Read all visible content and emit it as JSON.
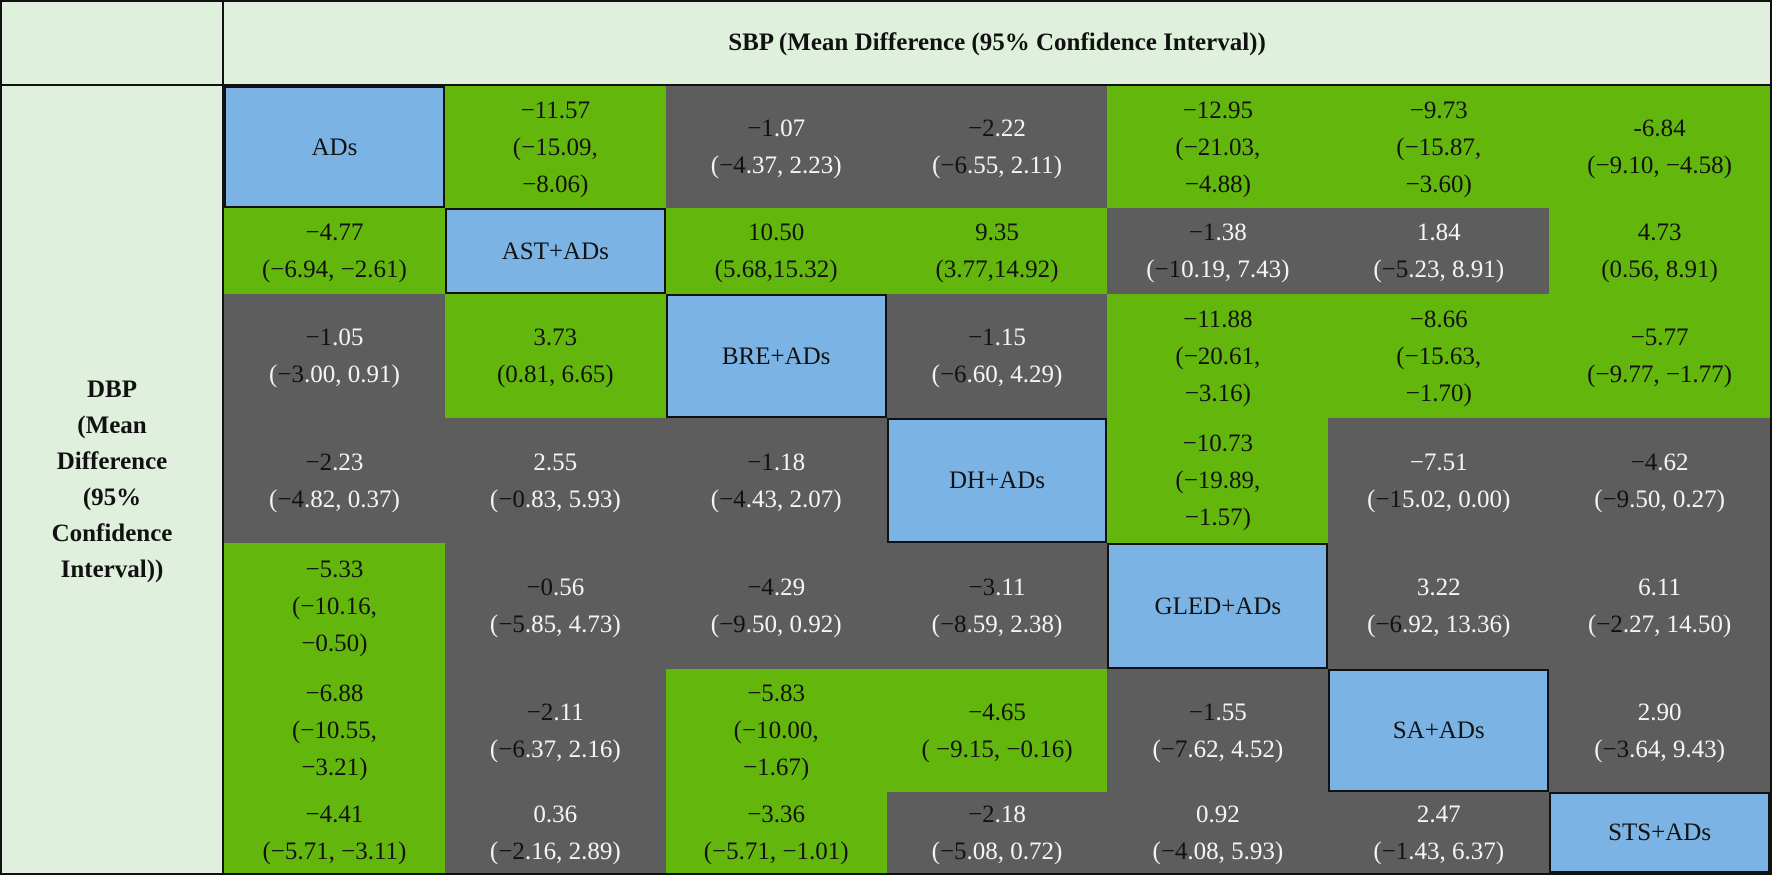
{
  "header": {
    "column_title": "SBP (Mean Difference (95% Confidence Interval))",
    "row_title": "DBP\n(Mean\nDifference\n(95%\nConfidence\nInterval))"
  },
  "colors": {
    "significant": "#63b60c",
    "not_significant": "#5d5d5d",
    "treatment": "#7ab3e4",
    "header": "#dff0dc"
  },
  "treatments": [
    "ADs",
    "AST+ADs",
    "BRE+ADs",
    "DH+ADs",
    "GLED+ADs",
    "SA+ADs",
    "STS+ADs"
  ],
  "rows": [
    [
      {
        "type": "blue",
        "lines": [
          [
            "",
            "ADs"
          ]
        ]
      },
      {
        "type": "green",
        "lines": [
          [
            "",
            "−11.57"
          ],
          [
            "",
            "(−15.09,"
          ],
          [
            "",
            "−8.06)"
          ]
        ]
      },
      {
        "type": "gray",
        "lines": [
          [
            "−1",
            ".07"
          ],
          [
            "(",
            "−4",
            ".37, 2.23)"
          ]
        ]
      },
      {
        "type": "gray",
        "lines": [
          [
            "−2",
            ".22"
          ],
          [
            "(",
            "−6",
            ".55, 2.11)"
          ]
        ]
      },
      {
        "type": "green",
        "lines": [
          [
            "",
            "−12.95"
          ],
          [
            "",
            "(−21.03,"
          ],
          [
            "",
            "−4.88)"
          ]
        ]
      },
      {
        "type": "green",
        "lines": [
          [
            "",
            "−9.73"
          ],
          [
            "",
            "(−15.87,"
          ],
          [
            "",
            "−3.60)"
          ]
        ]
      },
      {
        "type": "green",
        "lines": [
          [
            "",
            "-6.84"
          ],
          [
            "",
            "(−9.10, −4.58)"
          ]
        ]
      }
    ],
    [
      {
        "type": "green",
        "lines": [
          [
            "",
            "−4.77"
          ],
          [
            "",
            "(−6.94, −2.61)"
          ]
        ]
      },
      {
        "type": "blue",
        "lines": [
          [
            "",
            "AST+ADs"
          ]
        ]
      },
      {
        "type": "green",
        "lines": [
          [
            "",
            "10.50"
          ],
          [
            "",
            "(5.68,15.32)"
          ]
        ]
      },
      {
        "type": "green",
        "lines": [
          [
            "",
            "9.35"
          ],
          [
            "",
            "(3.77,14.92)"
          ]
        ]
      },
      {
        "type": "gray",
        "lines": [
          [
            "−1",
            ".38"
          ],
          [
            "(",
            "−1",
            "0.19, 7.43)"
          ]
        ]
      },
      {
        "type": "gray",
        "lines": [
          [
            "",
            "1.84"
          ],
          [
            "(",
            "−5",
            ".23, 8.91)"
          ]
        ]
      },
      {
        "type": "green",
        "lines": [
          [
            "",
            "4.73"
          ],
          [
            "",
            "(0.56, 8.91)"
          ]
        ]
      }
    ],
    [
      {
        "type": "gray",
        "lines": [
          [
            "−1",
            ".05"
          ],
          [
            "(",
            "−3",
            ".00, 0.91)"
          ]
        ]
      },
      {
        "type": "green",
        "lines": [
          [
            "",
            "3.73"
          ],
          [
            "",
            "(0.81, 6.65)"
          ]
        ]
      },
      {
        "type": "blue",
        "lines": [
          [
            "",
            "BRE+ADs"
          ]
        ]
      },
      {
        "type": "gray",
        "lines": [
          [
            "−1",
            ".15"
          ],
          [
            "(",
            "−6",
            ".60, 4.29)"
          ]
        ]
      },
      {
        "type": "green",
        "lines": [
          [
            "",
            "−11.88"
          ],
          [
            "",
            "(−20.61,"
          ],
          [
            "",
            "−3.16)"
          ]
        ]
      },
      {
        "type": "green",
        "lines": [
          [
            "",
            "−8.66"
          ],
          [
            "",
            "(−15.63,"
          ],
          [
            "",
            "−1.70)"
          ]
        ]
      },
      {
        "type": "green",
        "lines": [
          [
            "",
            "−5.77"
          ],
          [
            "",
            "(−9.77, −1.77)"
          ]
        ]
      }
    ],
    [
      {
        "type": "gray",
        "lines": [
          [
            "−2",
            ".23"
          ],
          [
            "(",
            "−4",
            ".82, 0.37)"
          ]
        ]
      },
      {
        "type": "gray",
        "lines": [
          [
            "",
            "2.55"
          ],
          [
            "(",
            "−0",
            ".83, 5.93)"
          ]
        ]
      },
      {
        "type": "gray",
        "lines": [
          [
            "−1",
            ".18"
          ],
          [
            "(",
            "−4",
            ".43, 2.07)"
          ]
        ]
      },
      {
        "type": "blue",
        "lines": [
          [
            "",
            "DH+ADs"
          ]
        ]
      },
      {
        "type": "green",
        "lines": [
          [
            "",
            "−10.73"
          ],
          [
            "",
            "(−19.89,"
          ],
          [
            "",
            "−1.57)"
          ]
        ]
      },
      {
        "type": "gray",
        "lines": [
          [
            "",
            "−7.51"
          ],
          [
            "(",
            "−1",
            "5.02, 0.00)"
          ]
        ]
      },
      {
        "type": "gray",
        "lines": [
          [
            "−4",
            ".62"
          ],
          [
            "(",
            "−9",
            ".50, 0.27)"
          ]
        ]
      }
    ],
    [
      {
        "type": "green",
        "lines": [
          [
            "",
            "−5.33"
          ],
          [
            "",
            "(−10.16,"
          ],
          [
            "",
            "−0.50)"
          ]
        ]
      },
      {
        "type": "gray",
        "lines": [
          [
            "−0",
            ".56"
          ],
          [
            "(",
            "−5",
            ".85, 4.73)"
          ]
        ]
      },
      {
        "type": "gray",
        "lines": [
          [
            "−4",
            ".29"
          ],
          [
            "(",
            "−9",
            ".50, 0.92)"
          ]
        ]
      },
      {
        "type": "gray",
        "lines": [
          [
            "−3",
            ".11"
          ],
          [
            "(",
            "−8",
            ".59, 2.38)"
          ]
        ]
      },
      {
        "type": "blue",
        "lines": [
          [
            "",
            "GLED+ADs"
          ]
        ]
      },
      {
        "type": "gray",
        "lines": [
          [
            "",
            "3.22"
          ],
          [
            "(",
            "−6",
            ".92, 13.36)"
          ]
        ]
      },
      {
        "type": "gray",
        "lines": [
          [
            "",
            "6.11"
          ],
          [
            "(",
            "−2",
            ".27, 14.50)"
          ]
        ]
      }
    ],
    [
      {
        "type": "green",
        "lines": [
          [
            "",
            "−6.88"
          ],
          [
            "",
            "(−10.55,"
          ],
          [
            "",
            "−3.21)"
          ]
        ]
      },
      {
        "type": "gray",
        "lines": [
          [
            "−2",
            ".11"
          ],
          [
            "(",
            "−6",
            ".37, 2.16)"
          ]
        ]
      },
      {
        "type": "green",
        "lines": [
          [
            "",
            "−5.83"
          ],
          [
            "",
            "(−10.00,"
          ],
          [
            "",
            "−1.67)"
          ]
        ]
      },
      {
        "type": "green",
        "lines": [
          [
            "",
            "−4.65"
          ],
          [
            "",
            "( −9.15, −0.16)"
          ]
        ]
      },
      {
        "type": "gray",
        "lines": [
          [
            "−1",
            ".55"
          ],
          [
            "(",
            "−7",
            ".62, 4.52)"
          ]
        ]
      },
      {
        "type": "blue",
        "lines": [
          [
            "",
            "SA+ADs"
          ]
        ]
      },
      {
        "type": "gray",
        "lines": [
          [
            "",
            "2.90"
          ],
          [
            "(",
            "−3",
            ".64, 9.43)"
          ]
        ]
      }
    ],
    [
      {
        "type": "green",
        "lines": [
          [
            "",
            "−4.41"
          ],
          [
            "",
            "(−5.71, −3.11)"
          ]
        ]
      },
      {
        "type": "gray",
        "lines": [
          [
            "",
            "0.36"
          ],
          [
            "(",
            "−2",
            ".16, 2.89)"
          ]
        ]
      },
      {
        "type": "green",
        "lines": [
          [
            "",
            "−3.36"
          ],
          [
            "",
            "(−5.71, −1.01)"
          ]
        ]
      },
      {
        "type": "gray",
        "lines": [
          [
            "−2",
            ".18"
          ],
          [
            "(",
            "−5",
            ".08, 0.72)"
          ]
        ]
      },
      {
        "type": "gray",
        "lines": [
          [
            "",
            "0.92"
          ],
          [
            "(",
            "−4",
            ".08, 5.93)"
          ]
        ]
      },
      {
        "type": "gray",
        "lines": [
          [
            "",
            "2.47"
          ],
          [
            "(",
            "−1",
            ".43, 6.37)"
          ]
        ]
      },
      {
        "type": "blue",
        "lines": [
          [
            "",
            "STS+ADs"
          ]
        ]
      }
    ]
  ]
}
